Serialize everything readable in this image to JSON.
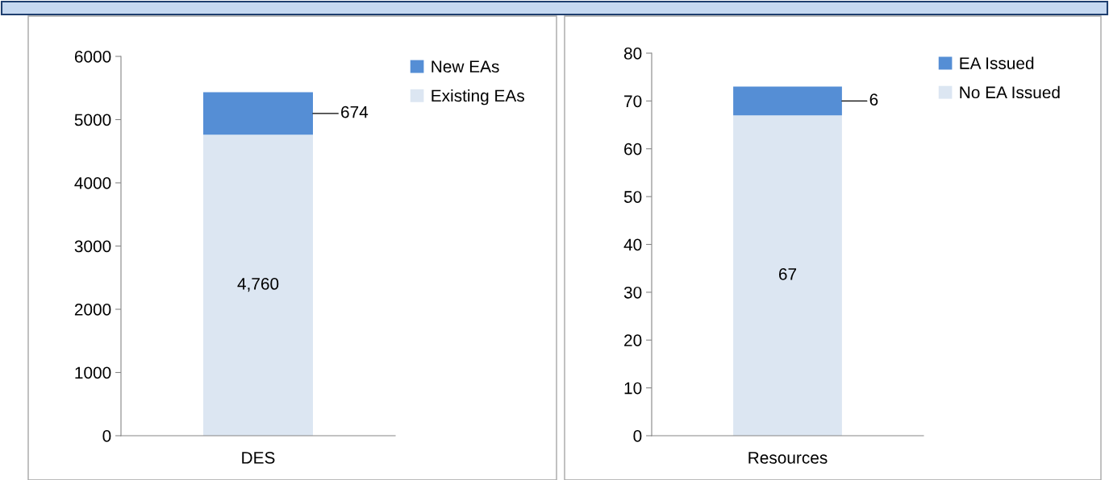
{
  "chart_data": [
    {
      "type": "bar",
      "stacked": true,
      "categories": [
        "DES"
      ],
      "ylim": [
        0,
        6000
      ],
      "yticks": [
        0,
        1000,
        2000,
        3000,
        4000,
        5000,
        6000
      ],
      "grid": false,
      "legend": "top right",
      "series": [
        {
          "name": "Existing EAs",
          "color": "#dce6f2",
          "values": [
            4760
          ],
          "value_labels": [
            "4,760"
          ]
        },
        {
          "name": "New EAs",
          "color": "#558ed5",
          "values": [
            674
          ],
          "value_labels": [
            "674"
          ]
        }
      ]
    },
    {
      "type": "bar",
      "stacked": true,
      "categories": [
        "Resources"
      ],
      "ylim": [
        0,
        80
      ],
      "yticks": [
        0,
        10,
        20,
        30,
        40,
        50,
        60,
        70,
        80
      ],
      "grid": false,
      "legend": "top right",
      "series": [
        {
          "name": "No EA Issued",
          "color": "#dce6f2",
          "values": [
            67
          ],
          "value_labels": [
            "67"
          ]
        },
        {
          "name": "EA Issued",
          "color": "#558ed5",
          "values": [
            6
          ],
          "value_labels": [
            "6"
          ]
        }
      ]
    }
  ]
}
